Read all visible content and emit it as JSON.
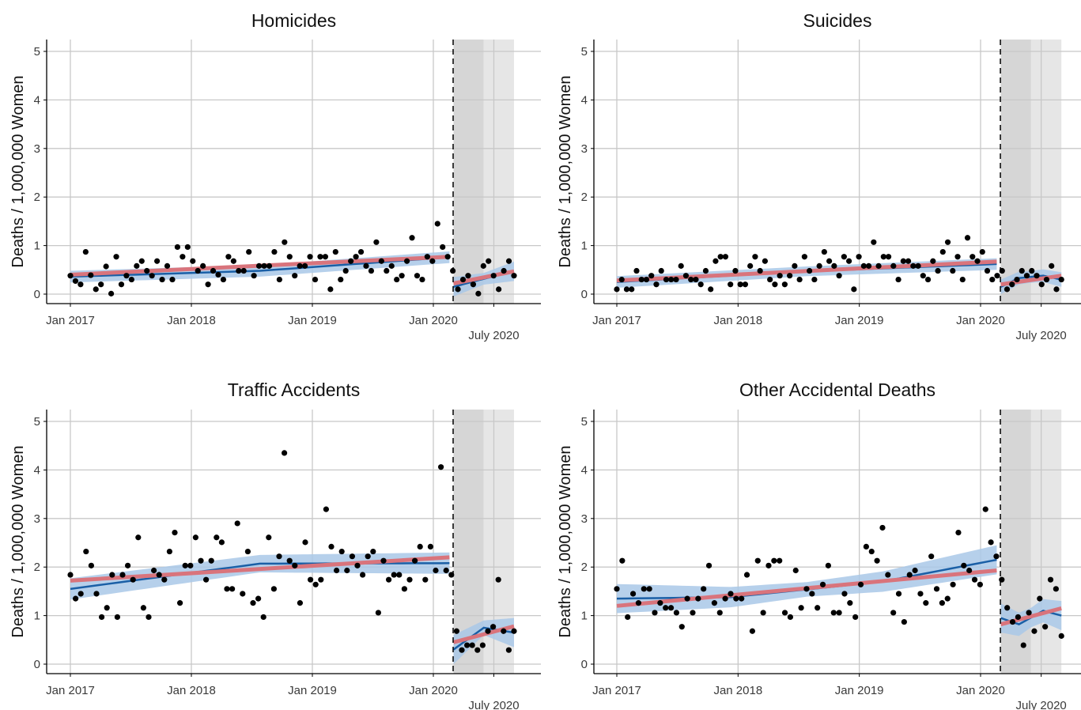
{
  "chart_data": [
    {
      "type": "scatter",
      "title": "Homicides",
      "ylabel": "Deaths / 1,000,000 Women",
      "xlabel": "",
      "ylim": [
        0,
        5
      ],
      "x_ticks": [
        "Jan 2017",
        "Jan 2018",
        "Jan 2019",
        "Jan 2020"
      ],
      "x_tick_extra": "July 2020",
      "y_ticks": [
        "0",
        "1",
        "2",
        "3",
        "4",
        "5"
      ],
      "grid": true,
      "x_range": [
        "2017-01",
        "2020-09"
      ],
      "pandemic_start": "2020-03",
      "shade_dark": [
        "2020-03",
        "2020-06"
      ],
      "shade_light": [
        "2020-06",
        "2020-09"
      ],
      "points": [
        0.38,
        0.27,
        0.2,
        0.87,
        0.39,
        0.1,
        0.2,
        0.57,
        0.01,
        0.77,
        0.2,
        0.38,
        0.3,
        0.58,
        0.68,
        0.48,
        0.38,
        0.68,
        0.3,
        0.58,
        0.3,
        0.97,
        0.77,
        0.97,
        0.68,
        0.48,
        0.58,
        0.2,
        0.48,
        0.4,
        0.3,
        0.77,
        0.68,
        0.48,
        0.48,
        0.87,
        0.38,
        0.58,
        0.58,
        0.58,
        0.87,
        0.3,
        1.07,
        0.77,
        0.38,
        0.58,
        0.58,
        0.77,
        0.3,
        0.77,
        0.77,
        0.1,
        0.87,
        0.3,
        0.48,
        0.68,
        0.77,
        0.87,
        0.58,
        0.48,
        1.07,
        0.68,
        0.48,
        0.58,
        0.3,
        0.38,
        0.68,
        1.16,
        0.38,
        0.3,
        0.77,
        0.68,
        1.45,
        0.97,
        0.77,
        0.48,
        0.1,
        0.3,
        0.38,
        0.2,
        0.01,
        0.58,
        0.68,
        0.38,
        0.1,
        0.48,
        0.68,
        0.38
      ],
      "fit_pre": {
        "blue": [
          [
            0,
            0.36
          ],
          [
            0.5,
            0.48
          ],
          [
            1,
            0.76
          ]
        ],
        "red": [
          [
            0,
            0.4
          ],
          [
            1,
            0.77
          ]
        ],
        "band": [
          0.12,
          0.12
        ]
      },
      "fit_post": {
        "blue": [
          [
            0,
            0.15
          ],
          [
            0.45,
            0.3
          ],
          [
            1,
            0.47
          ]
        ],
        "red": [
          [
            0,
            0.22
          ],
          [
            1,
            0.47
          ]
        ],
        "band": [
          0.12,
          0.2
        ]
      }
    },
    {
      "type": "scatter",
      "title": "Suicides",
      "ylabel": "Deaths / 1,000,000 Women",
      "xlabel": "",
      "ylim": [
        0,
        5
      ],
      "x_ticks": [
        "Jan 2017",
        "Jan 2018",
        "Jan 2019",
        "Jan 2020"
      ],
      "x_tick_extra": "July 2020",
      "y_ticks": [
        "0",
        "1",
        "2",
        "3",
        "4",
        "5"
      ],
      "grid": true,
      "x_range": [
        "2017-01",
        "2020-09"
      ],
      "pandemic_start": "2020-03",
      "shade_dark": [
        "2020-03",
        "2020-06"
      ],
      "shade_light": [
        "2020-06",
        "2020-09"
      ],
      "points": [
        0.1,
        0.3,
        0.1,
        0.1,
        0.48,
        0.3,
        0.3,
        0.38,
        0.2,
        0.48,
        0.3,
        0.3,
        0.3,
        0.58,
        0.38,
        0.3,
        0.3,
        0.2,
        0.48,
        0.1,
        0.68,
        0.77,
        0.77,
        0.2,
        0.48,
        0.2,
        0.2,
        0.58,
        0.77,
        0.48,
        0.68,
        0.3,
        0.2,
        0.38,
        0.2,
        0.38,
        0.58,
        0.3,
        0.77,
        0.48,
        0.3,
        0.58,
        0.87,
        0.68,
        0.58,
        0.38,
        0.77,
        0.68,
        0.1,
        0.77,
        0.58,
        0.58,
        1.07,
        0.58,
        0.77,
        0.77,
        0.58,
        0.3,
        0.68,
        0.68,
        0.58,
        0.58,
        0.38,
        0.3,
        0.68,
        0.48,
        0.87,
        1.07,
        0.48,
        0.77,
        0.3,
        1.16,
        0.77,
        0.68,
        0.87,
        0.48,
        0.3,
        0.38,
        0.48,
        0.1,
        0.2,
        0.3,
        0.48,
        0.38,
        0.48,
        0.38,
        0.2,
        0.3,
        0.58,
        0.1,
        0.3
      ],
      "fit_pre": {
        "blue": [
          [
            0,
            0.25
          ],
          [
            0.5,
            0.47
          ],
          [
            1,
            0.62
          ]
        ],
        "red": [
          [
            0,
            0.28
          ],
          [
            1,
            0.67
          ]
        ],
        "band": [
          0.1,
          0.12
        ]
      },
      "fit_post": {
        "blue": [
          [
            0,
            0.15
          ],
          [
            0.3,
            0.33
          ],
          [
            0.7,
            0.38
          ],
          [
            1,
            0.3
          ]
        ],
        "red": [
          [
            0,
            0.2
          ],
          [
            1,
            0.38
          ]
        ],
        "band": [
          0.12,
          0.15
        ]
      }
    },
    {
      "type": "scatter",
      "title": "Traffic Accidents",
      "ylabel": "Deaths / 1,000,000 Women",
      "xlabel": "",
      "ylim": [
        0,
        5
      ],
      "x_ticks": [
        "Jan 2017",
        "Jan 2018",
        "Jan 2019",
        "Jan 2020"
      ],
      "x_tick_extra": "July 2020",
      "y_ticks": [
        "0",
        "1",
        "2",
        "3",
        "4",
        "5"
      ],
      "grid": true,
      "x_range": [
        "2017-01",
        "2020-09"
      ],
      "pandemic_start": "2020-03",
      "shade_dark": [
        "2020-03",
        "2020-06"
      ],
      "shade_light": [
        "2020-06",
        "2020-09"
      ],
      "points": [
        1.84,
        1.35,
        1.45,
        2.32,
        2.03,
        1.45,
        0.97,
        1.16,
        1.84,
        0.97,
        1.84,
        2.03,
        1.74,
        2.61,
        1.16,
        0.97,
        1.93,
        1.84,
        1.74,
        2.32,
        2.71,
        1.26,
        2.03,
        2.03,
        2.61,
        2.13,
        1.74,
        2.13,
        2.61,
        2.51,
        1.55,
        1.55,
        2.9,
        1.45,
        2.32,
        1.26,
        1.35,
        0.97,
        2.61,
        1.55,
        2.22,
        4.35,
        2.13,
        2.03,
        1.26,
        2.51,
        1.74,
        1.64,
        1.74,
        3.19,
        2.42,
        1.93,
        2.32,
        1.93,
        2.22,
        2.03,
        1.84,
        2.22,
        2.32,
        1.06,
        2.13,
        1.74,
        1.84,
        1.84,
        1.55,
        1.74,
        2.13,
        2.42,
        1.74,
        2.42,
        1.93,
        4.06,
        1.93,
        1.84,
        0.68,
        0.29,
        0.39,
        0.39,
        0.29,
        0.39,
        0.68,
        0.77,
        1.74,
        0.68,
        0.29,
        0.68
      ],
      "fit_pre": {
        "blue": [
          [
            0,
            1.55
          ],
          [
            0.5,
            2.07
          ],
          [
            1,
            2.08
          ]
        ],
        "red": [
          [
            0,
            1.72
          ],
          [
            1,
            2.2
          ]
        ],
        "band": [
          0.18,
          0.22
        ]
      },
      "fit_post": {
        "blue": [
          [
            0,
            0.3
          ],
          [
            0.5,
            0.75
          ],
          [
            1,
            0.65
          ]
        ],
        "red": [
          [
            0,
            0.45
          ],
          [
            1,
            0.78
          ]
        ],
        "band": [
          0.15,
          0.3
        ]
      }
    },
    {
      "type": "scatter",
      "title": "Other Accidental Deaths",
      "ylabel": "Deaths / 1,000,000 Women",
      "xlabel": "",
      "ylim": [
        0,
        5
      ],
      "x_ticks": [
        "Jan 2017",
        "Jan 2018",
        "Jan 2019",
        "Jan 2020"
      ],
      "x_tick_extra": "July 2020",
      "y_ticks": [
        "0",
        "1",
        "2",
        "3",
        "4",
        "5"
      ],
      "grid": true,
      "x_range": [
        "2017-01",
        "2020-09"
      ],
      "pandemic_start": "2020-03",
      "shade_dark": [
        "2020-03",
        "2020-06"
      ],
      "shade_light": [
        "2020-06",
        "2020-09"
      ],
      "points": [
        1.55,
        2.13,
        0.97,
        1.45,
        1.26,
        1.55,
        1.55,
        1.06,
        1.26,
        1.16,
        1.16,
        1.06,
        0.77,
        1.35,
        1.06,
        1.35,
        1.55,
        2.03,
        1.26,
        1.06,
        1.35,
        1.45,
        1.35,
        1.35,
        1.84,
        0.68,
        2.13,
        1.06,
        2.03,
        2.13,
        2.13,
        1.06,
        0.97,
        1.93,
        1.16,
        1.55,
        1.45,
        1.16,
        1.64,
        2.03,
        1.06,
        1.06,
        1.45,
        1.26,
        0.97,
        1.64,
        2.42,
        2.32,
        2.13,
        2.81,
        1.84,
        1.06,
        1.45,
        0.87,
        1.84,
        1.93,
        1.45,
        1.26,
        2.22,
        1.55,
        1.26,
        1.35,
        1.64,
        2.71,
        2.03,
        1.93,
        1.74,
        1.64,
        3.19,
        2.51,
        2.22,
        1.74,
        1.16,
        0.87,
        0.97,
        0.39,
        1.06,
        0.68,
        1.35,
        0.77,
        1.74,
        1.55,
        0.58
      ],
      "fit_pre": {
        "blue": [
          [
            0,
            1.35
          ],
          [
            0.3,
            1.38
          ],
          [
            0.7,
            1.7
          ],
          [
            1,
            2.15
          ]
        ],
        "red": [
          [
            0,
            1.2
          ],
          [
            1,
            1.93
          ]
        ],
        "band": [
          0.15,
          0.3
        ]
      },
      "fit_post": {
        "blue": [
          [
            0,
            0.95
          ],
          [
            0.3,
            0.82
          ],
          [
            0.7,
            1.1
          ],
          [
            1,
            1.0
          ]
        ],
        "red": [
          [
            0,
            0.82
          ],
          [
            1,
            1.15
          ]
        ],
        "band": [
          0.2,
          0.3
        ]
      }
    }
  ],
  "colors": {
    "points": "#000000",
    "blue_line": "#1a5fa6",
    "blue_band": "#a9c8e8",
    "red_line": "#d9747c",
    "grid": "#c8c8c8",
    "shade_dark": "#d6d6d6",
    "shade_light": "#e6e6e6",
    "axis": "#000000",
    "tick_text": "#3a3a3a"
  }
}
